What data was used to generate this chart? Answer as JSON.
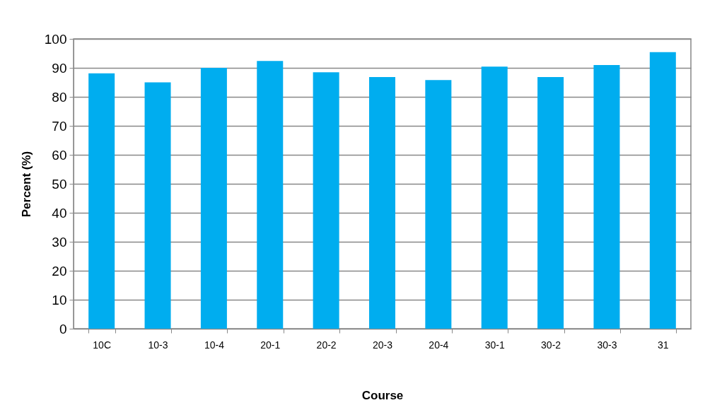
{
  "chart_data": {
    "type": "bar",
    "xlabel": "Course",
    "ylabel": "Percent (%)",
    "categories": [
      "10C",
      "10-3",
      "10-4",
      "20-1",
      "20-2",
      "20-3",
      "20-4",
      "30-1",
      "30-2",
      "30-3",
      "31"
    ],
    "values": [
      88.1,
      85.0,
      90.0,
      92.4,
      88.5,
      86.8,
      85.8,
      90.4,
      86.8,
      91.0,
      95.4
    ],
    "color": "#00adef",
    "ylim": [
      0,
      100
    ],
    "yticks": [
      0,
      10,
      20,
      30,
      40,
      50,
      60,
      70,
      80,
      90,
      100
    ],
    "grid": "y"
  }
}
